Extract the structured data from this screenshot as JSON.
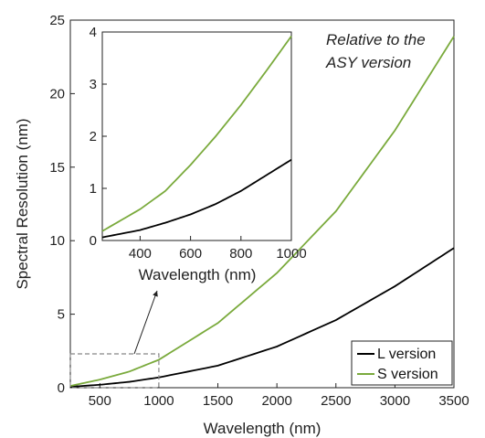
{
  "chart_data": [
    {
      "type": "line",
      "id": "main",
      "xlabel": "Wavelength (nm)",
      "ylabel": "Spectral Resolution (nm)",
      "xlim": [
        250,
        3500
      ],
      "ylim": [
        0,
        25
      ],
      "xticks": [
        500,
        1000,
        1500,
        2000,
        2500,
        3000,
        3500
      ],
      "yticks": [
        0,
        5,
        10,
        15,
        20,
        25
      ],
      "grid": false,
      "legend": {
        "placement": "bottom-right",
        "entries": [
          "L version",
          "S version"
        ]
      },
      "series": [
        {
          "name": "L version",
          "color": "#000000",
          "x": [
            250,
            500,
            750,
            1000,
            1500,
            2000,
            2500,
            3000,
            3500
          ],
          "y": [
            0.06,
            0.2,
            0.4,
            0.7,
            1.5,
            2.8,
            4.6,
            6.9,
            9.5
          ]
        },
        {
          "name": "S version",
          "color": "#7aaa3c",
          "x": [
            250,
            500,
            750,
            1000,
            1500,
            2000,
            2500,
            3000,
            3500
          ],
          "y": [
            0.12,
            0.55,
            1.1,
            1.9,
            4.4,
            7.8,
            12.0,
            17.5,
            23.9
          ]
        }
      ]
    },
    {
      "type": "line",
      "id": "inset",
      "xlabel": "Wavelength (nm)",
      "ylabel": "",
      "xlim": [
        250,
        1000
      ],
      "ylim": [
        0,
        4
      ],
      "xticks": [
        400,
        600,
        800,
        1000
      ],
      "yticks": [
        0,
        1,
        2,
        3,
        4
      ],
      "grid": false,
      "annotation": "Relative to the ASY version",
      "series": [
        {
          "name": "L version",
          "color": "#000000",
          "x": [
            250,
            400,
            500,
            600,
            700,
            800,
            900,
            1000
          ],
          "y": [
            0.06,
            0.2,
            0.34,
            0.5,
            0.7,
            0.95,
            1.25,
            1.55
          ]
        },
        {
          "name": "S version",
          "color": "#7aaa3c",
          "x": [
            250,
            400,
            500,
            600,
            700,
            800,
            900,
            1000
          ],
          "y": [
            0.18,
            0.6,
            0.95,
            1.45,
            2.0,
            2.6,
            3.25,
            3.92
          ]
        }
      ]
    }
  ],
  "annotation_lines": [
    "Relative to the",
    "ASY version"
  ]
}
